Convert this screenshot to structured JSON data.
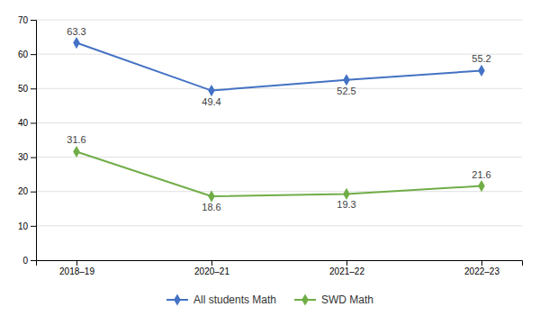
{
  "chart_data": {
    "type": "line",
    "categories": [
      "2018–19",
      "2020–21",
      "2021–22",
      "2022–23"
    ],
    "series": [
      {
        "name": "All students Math",
        "color": "#4472c4",
        "marker": "diamond",
        "values": [
          63.3,
          49.4,
          52.5,
          55.2
        ]
      },
      {
        "name": "SWD Math",
        "color": "#70ad47",
        "marker": "diamond",
        "values": [
          31.6,
          18.6,
          19.3,
          21.6
        ]
      }
    ],
    "ylim": [
      0,
      70
    ],
    "yticks": [
      0,
      10,
      20,
      30,
      40,
      50,
      60,
      70
    ],
    "grid": true,
    "data_labels": true,
    "legend": "bottom"
  }
}
